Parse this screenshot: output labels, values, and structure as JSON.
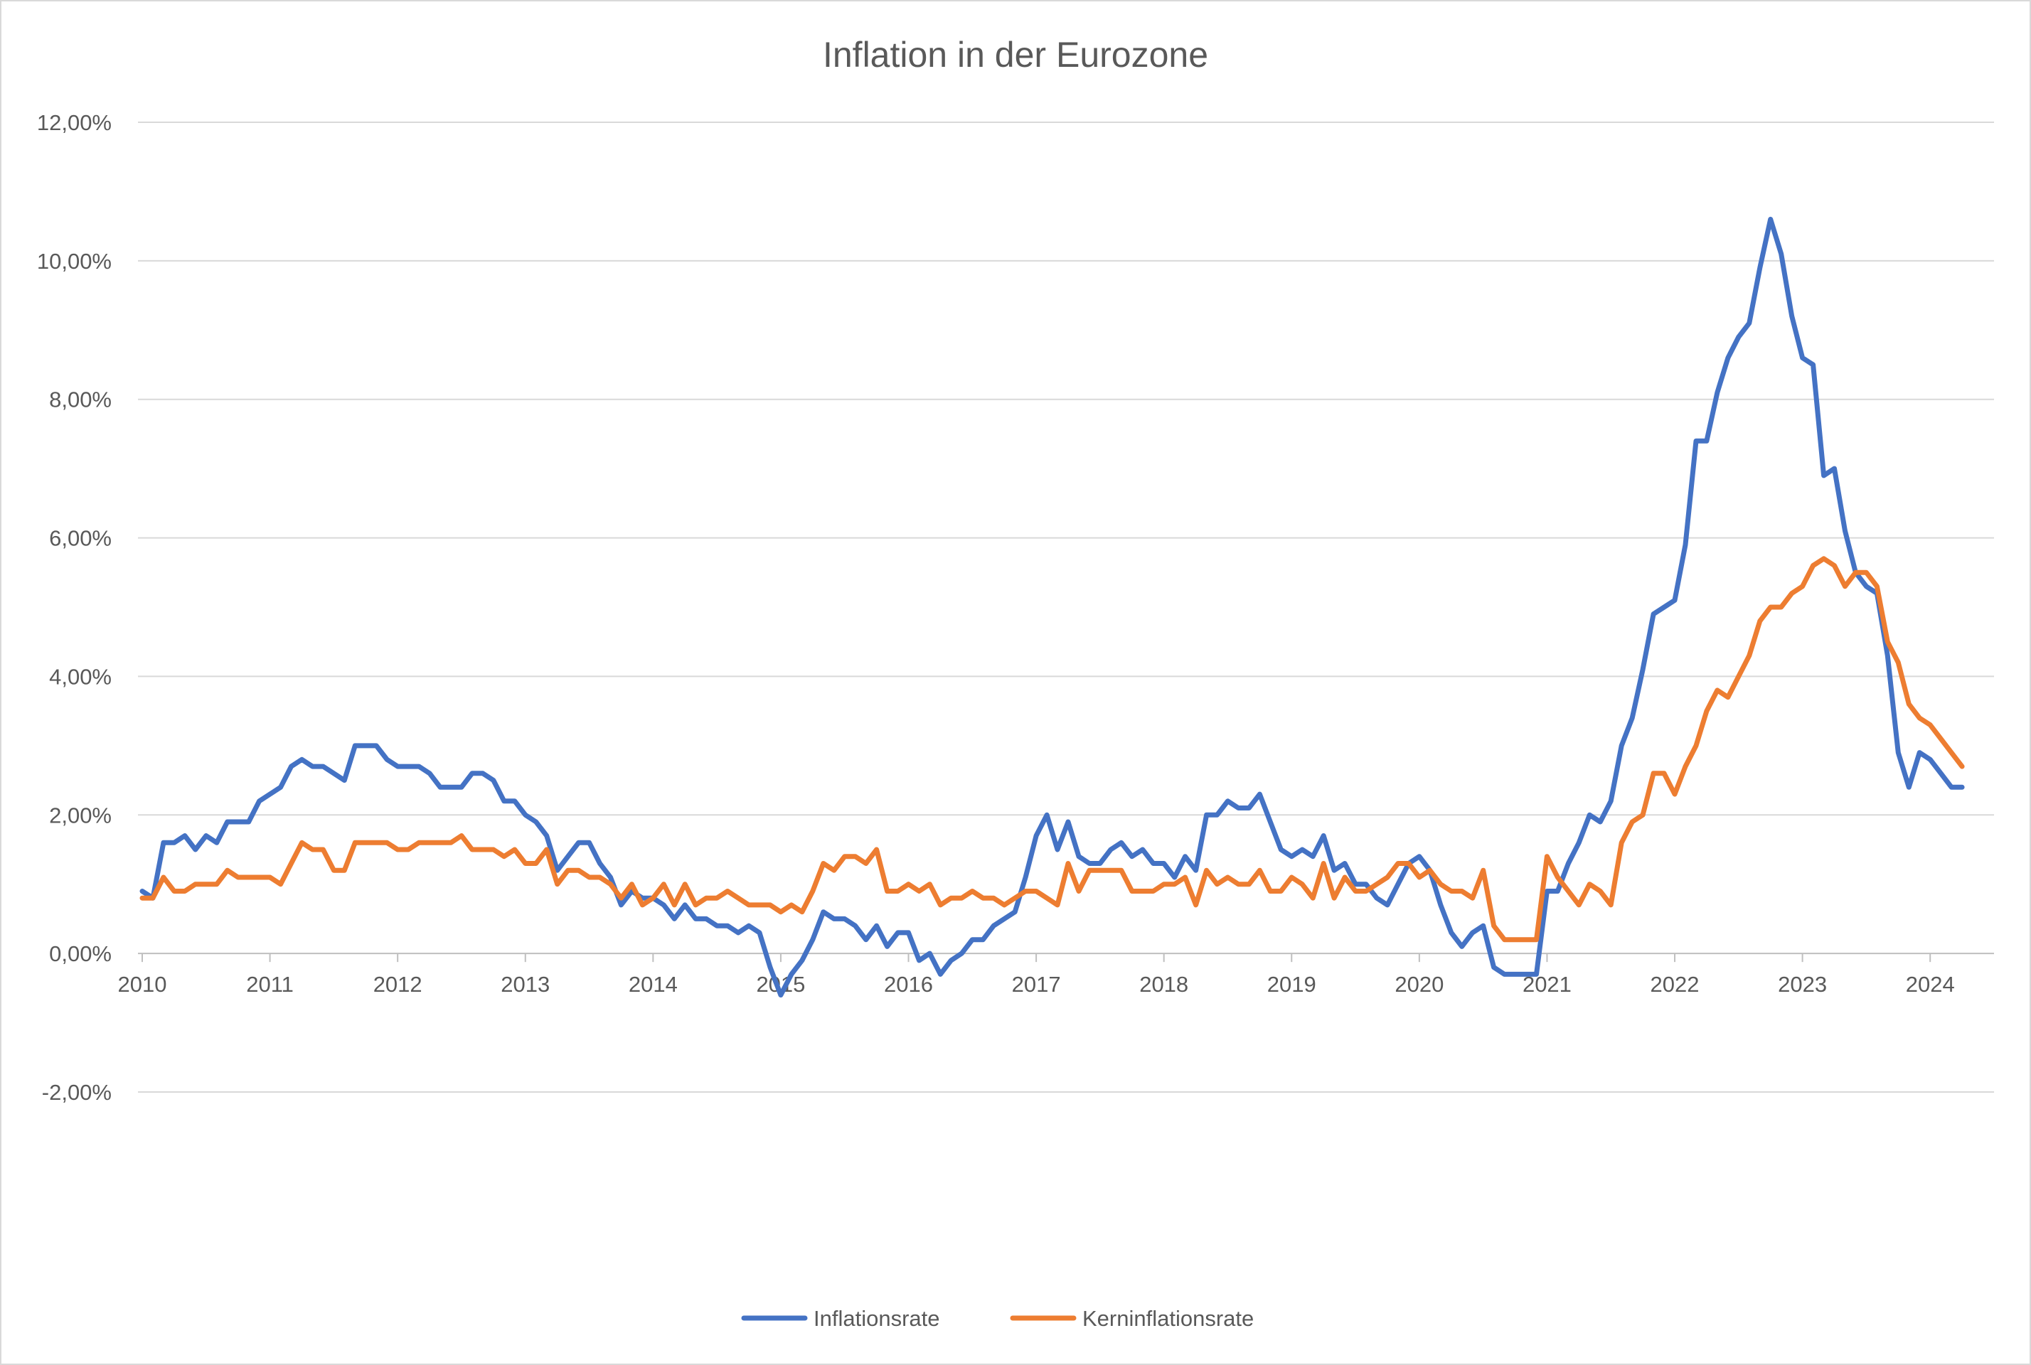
{
  "chart_data": {
    "type": "line",
    "title": "Inflation in der Eurozone",
    "x_start_year": 2010,
    "x_end_year": 2024,
    "x_tick_labels": [
      "2010",
      "2011",
      "2012",
      "2013",
      "2014",
      "2015",
      "2016",
      "2017",
      "2018",
      "2019",
      "2020",
      "2021",
      "2022",
      "2023",
      "2024"
    ],
    "ylim": [
      -2,
      12
    ],
    "y_ticks": [
      -2,
      0,
      2,
      4,
      6,
      8,
      10,
      12
    ],
    "y_tick_labels": [
      "-2,00%",
      "0,00%",
      "2,00%",
      "4,00%",
      "6,00%",
      "8,00%",
      "10,00%",
      "12,00%"
    ],
    "grid": true,
    "legend_position": "bottom",
    "series": [
      {
        "name": "Inflationsrate",
        "color": "#4472c4",
        "values": [
          0.9,
          0.8,
          1.6,
          1.6,
          1.7,
          1.5,
          1.7,
          1.6,
          1.9,
          1.9,
          1.9,
          2.2,
          2.3,
          2.4,
          2.7,
          2.8,
          2.7,
          2.7,
          2.6,
          2.5,
          3.0,
          3.0,
          3.0,
          2.8,
          2.7,
          2.7,
          2.7,
          2.6,
          2.4,
          2.4,
          2.4,
          2.6,
          2.6,
          2.5,
          2.2,
          2.2,
          2.0,
          1.9,
          1.7,
          1.2,
          1.4,
          1.6,
          1.6,
          1.3,
          1.1,
          0.7,
          0.9,
          0.8,
          0.8,
          0.7,
          0.5,
          0.7,
          0.5,
          0.5,
          0.4,
          0.4,
          0.3,
          0.4,
          0.3,
          -0.2,
          -0.6,
          -0.3,
          -0.1,
          0.2,
          0.6,
          0.5,
          0.5,
          0.4,
          0.2,
          0.4,
          0.1,
          0.3,
          0.3,
          -0.1,
          0.0,
          -0.3,
          -0.1,
          0.0,
          0.2,
          0.2,
          0.4,
          0.5,
          0.6,
          1.1,
          1.7,
          2.0,
          1.5,
          1.9,
          1.4,
          1.3,
          1.3,
          1.5,
          1.6,
          1.4,
          1.5,
          1.3,
          1.3,
          1.1,
          1.4,
          1.2,
          2.0,
          2.0,
          2.2,
          2.1,
          2.1,
          2.3,
          1.9,
          1.5,
          1.4,
          1.5,
          1.4,
          1.7,
          1.2,
          1.3,
          1.0,
          1.0,
          0.8,
          0.7,
          1.0,
          1.3,
          1.4,
          1.2,
          0.7,
          0.3,
          0.1,
          0.3,
          0.4,
          -0.2,
          -0.3,
          -0.3,
          -0.3,
          -0.3,
          0.9,
          0.9,
          1.3,
          1.6,
          2.0,
          1.9,
          2.2,
          3.0,
          3.4,
          4.1,
          4.9,
          5.0,
          5.1,
          5.9,
          7.4,
          7.4,
          8.1,
          8.6,
          8.9,
          9.1,
          9.9,
          10.6,
          10.1,
          9.2,
          8.6,
          8.5,
          6.9,
          7.0,
          6.1,
          5.5,
          5.3,
          5.2,
          4.3,
          2.9,
          2.4,
          2.9,
          2.8,
          2.6,
          2.4,
          2.4
        ]
      },
      {
        "name": "Kerninflationsrate",
        "color": "#ed7d31",
        "values": [
          0.8,
          0.8,
          1.1,
          0.9,
          0.9,
          1.0,
          1.0,
          1.0,
          1.2,
          1.1,
          1.1,
          1.1,
          1.1,
          1.0,
          1.3,
          1.6,
          1.5,
          1.5,
          1.2,
          1.2,
          1.6,
          1.6,
          1.6,
          1.6,
          1.5,
          1.5,
          1.6,
          1.6,
          1.6,
          1.6,
          1.7,
          1.5,
          1.5,
          1.5,
          1.4,
          1.5,
          1.3,
          1.3,
          1.5,
          1.0,
          1.2,
          1.2,
          1.1,
          1.1,
          1.0,
          0.8,
          1.0,
          0.7,
          0.8,
          1.0,
          0.7,
          1.0,
          0.7,
          0.8,
          0.8,
          0.9,
          0.8,
          0.7,
          0.7,
          0.7,
          0.6,
          0.7,
          0.6,
          0.9,
          1.3,
          1.2,
          1.4,
          1.4,
          1.3,
          1.5,
          0.9,
          0.9,
          1.0,
          0.9,
          1.0,
          0.7,
          0.8,
          0.8,
          0.9,
          0.8,
          0.8,
          0.7,
          0.8,
          0.9,
          0.9,
          0.8,
          0.7,
          1.3,
          0.9,
          1.2,
          1.2,
          1.2,
          1.2,
          0.9,
          0.9,
          0.9,
          1.0,
          1.0,
          1.1,
          0.7,
          1.2,
          1.0,
          1.1,
          1.0,
          1.0,
          1.2,
          0.9,
          0.9,
          1.1,
          1.0,
          0.8,
          1.3,
          0.8,
          1.1,
          0.9,
          0.9,
          1.0,
          1.1,
          1.3,
          1.3,
          1.1,
          1.2,
          1.0,
          0.9,
          0.9,
          0.8,
          1.2,
          0.4,
          0.2,
          0.2,
          0.2,
          0.2,
          1.4,
          1.1,
          0.9,
          0.7,
          1.0,
          0.9,
          0.7,
          1.6,
          1.9,
          2.0,
          2.6,
          2.6,
          2.3,
          2.7,
          3.0,
          3.5,
          3.8,
          3.7,
          4.0,
          4.3,
          4.8,
          5.0,
          5.0,
          5.2,
          5.3,
          5.6,
          5.7,
          5.6,
          5.3,
          5.5,
          5.5,
          5.3,
          4.5,
          4.2,
          3.6,
          3.4,
          3.3,
          3.1,
          2.9,
          2.7
        ]
      }
    ]
  }
}
